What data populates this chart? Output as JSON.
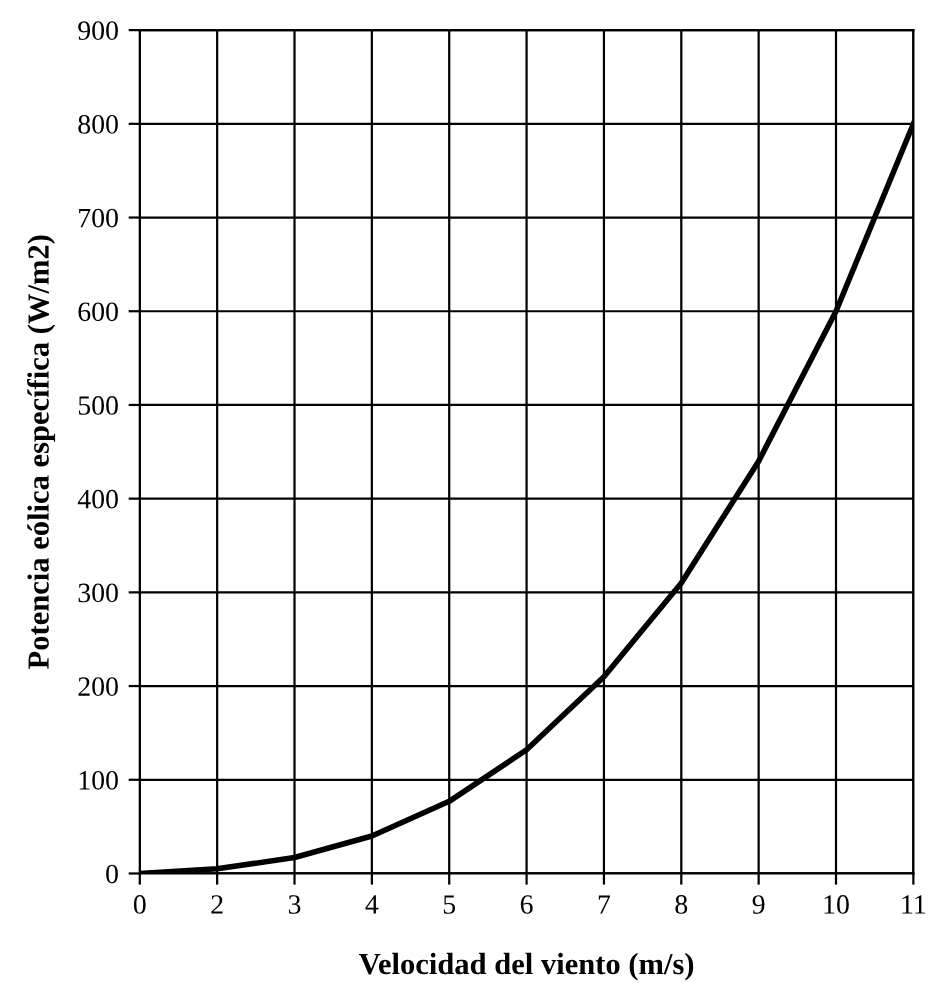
{
  "chart_data": {
    "type": "line",
    "xlabel": "Velocidad del viento (m/s)",
    "ylabel": "Potencia eólica específica (W/m2)",
    "categories": [
      "0",
      "2",
      "3",
      "4",
      "5",
      "6",
      "7",
      "8",
      "9",
      "10",
      "11"
    ],
    "series": [
      {
        "color": "#000000",
        "values": [
          0,
          5,
          17,
          40,
          77,
          132,
          210,
          310,
          440,
          600,
          800
        ]
      }
    ],
    "ylim": [
      0,
      900
    ],
    "yticks": [
      0,
      100,
      200,
      300,
      400,
      500,
      600,
      700,
      800,
      900
    ],
    "grid": true,
    "legend": false,
    "marker": "none",
    "line_style": "solid"
  }
}
